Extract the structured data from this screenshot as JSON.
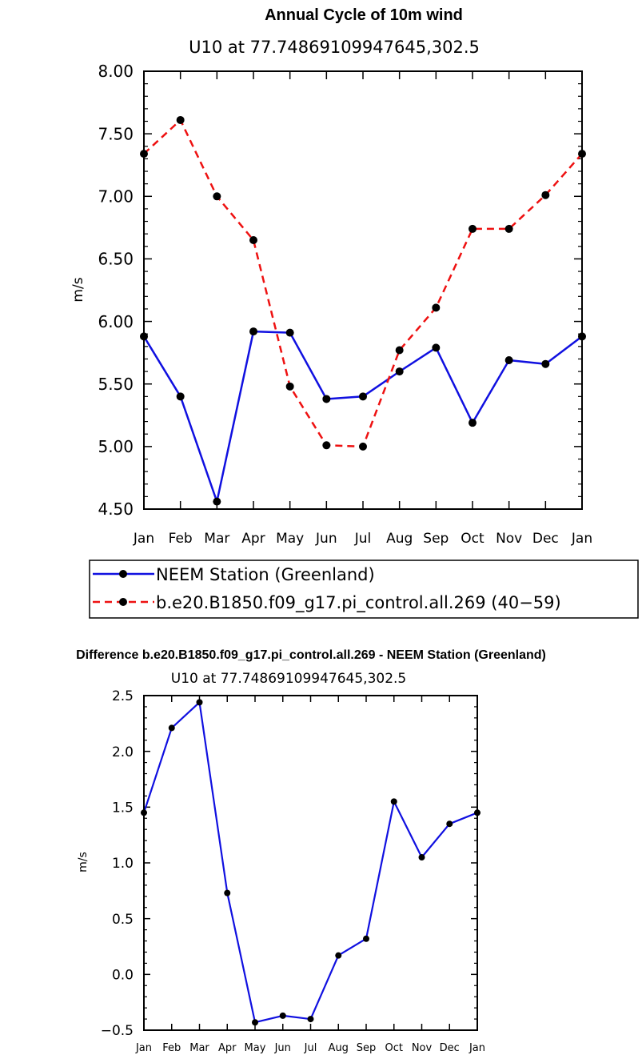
{
  "chart_data": [
    {
      "type": "line",
      "title": "Annual Cycle of 10m wind",
      "subtitle": "U10 at 77.74869109947645,302.5",
      "xlabel": "",
      "ylabel": "m/s",
      "categories": [
        "Jan",
        "Feb",
        "Mar",
        "Apr",
        "May",
        "Jun",
        "Jul",
        "Aug",
        "Sep",
        "Oct",
        "Nov",
        "Dec",
        "Jan"
      ],
      "ylim": [
        4.5,
        8.0
      ],
      "yticks": [
        "4.50",
        "5.00",
        "5.50",
        "6.00",
        "6.50",
        "7.00",
        "7.50",
        "8.00"
      ],
      "ytick_values": [
        4.5,
        5.0,
        5.5,
        6.0,
        6.5,
        7.0,
        7.5,
        8.0
      ],
      "grid": false,
      "legend_position": "bottom",
      "series": [
        {
          "name": "NEEM Station (Greenland)",
          "color": "#1010e0",
          "dash": "solid",
          "values": [
            5.88,
            5.4,
            4.56,
            5.92,
            5.91,
            5.38,
            5.4,
            5.6,
            5.79,
            5.19,
            5.69,
            5.66,
            5.88
          ]
        },
        {
          "name": "b.e20.B1850.f09_g17.pi_control.all.269 (40−59)",
          "color": "#ee1111",
          "dash": "dashed",
          "values": [
            7.34,
            7.61,
            7.0,
            6.65,
            5.48,
            5.01,
            5.0,
            5.77,
            6.11,
            6.74,
            6.74,
            7.01,
            7.34
          ]
        }
      ]
    },
    {
      "type": "line",
      "title": "Difference b.e20.B1850.f09_g17.pi_control.all.269 - NEEM Station (Greenland)",
      "subtitle": "U10 at 77.74869109947645,302.5",
      "xlabel": "",
      "ylabel": "m/s",
      "categories": [
        "Jan",
        "Feb",
        "Mar",
        "Apr",
        "May",
        "Jun",
        "Jul",
        "Aug",
        "Sep",
        "Oct",
        "Nov",
        "Dec",
        "Jan"
      ],
      "ylim": [
        -0.5,
        2.5
      ],
      "yticks": [
        "−0.5",
        "0.0",
        "0.5",
        "1.0",
        "1.5",
        "2.0",
        "2.5"
      ],
      "ytick_values": [
        -0.5,
        0.0,
        0.5,
        1.0,
        1.5,
        2.0,
        2.5
      ],
      "grid": false,
      "series": [
        {
          "name": "Difference",
          "color": "#1010e0",
          "dash": "solid",
          "values": [
            1.45,
            2.21,
            2.44,
            0.73,
            -0.43,
            -0.37,
            -0.4,
            0.17,
            0.32,
            1.55,
            1.05,
            1.35,
            1.45
          ]
        }
      ]
    }
  ]
}
